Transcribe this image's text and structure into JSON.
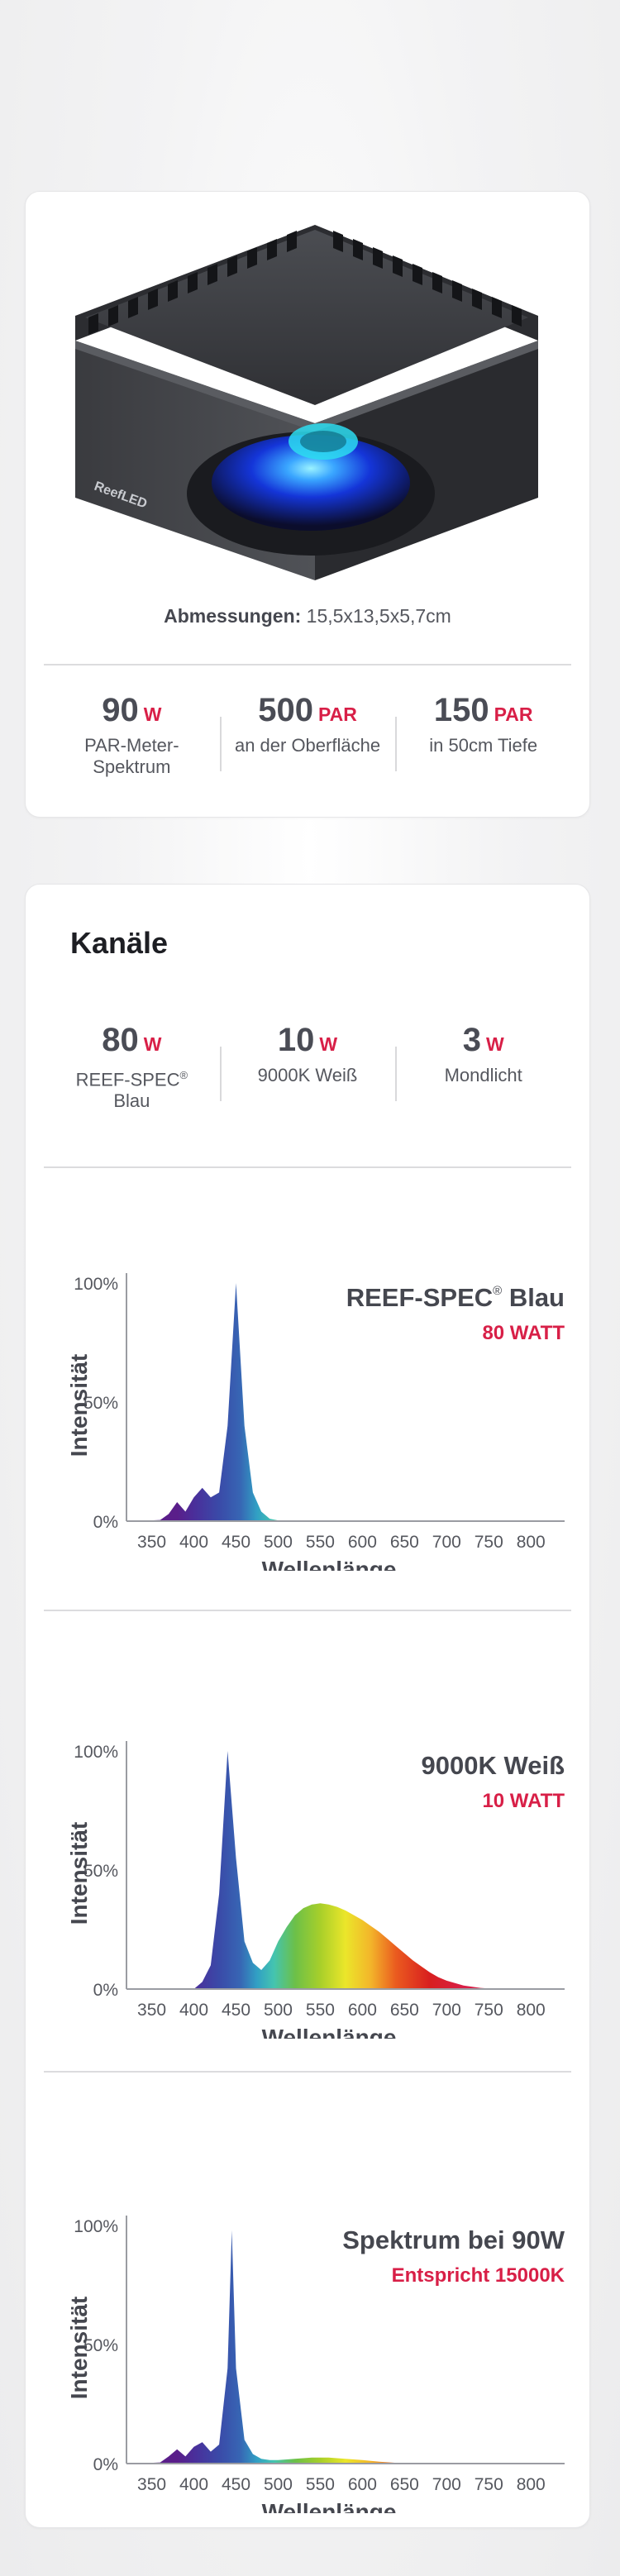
{
  "product": {
    "dims_label": "Abmessungen:",
    "dims_value": "15,5x13,5x5,7cm",
    "logo_text": "ReefLED",
    "stats": [
      {
        "value": "90",
        "unit": "W",
        "label": "PAR-Meter-Spektrum"
      },
      {
        "value": "500",
        "unit": "PAR",
        "label": "an der Oberfläche"
      },
      {
        "value": "150",
        "unit": "PAR",
        "label": "in 50cm Tiefe"
      }
    ]
  },
  "channels": {
    "title": "Kanäle",
    "stats": [
      {
        "value": "80",
        "unit": "W",
        "label": "REEF-SPEC",
        "label_sup": "®",
        "label_2": "Blau"
      },
      {
        "value": "10",
        "unit": "W",
        "label": "9000K Weiß"
      },
      {
        "value": "3",
        "unit": "W",
        "label": "Mondlicht"
      }
    ]
  },
  "colors": {
    "accent": "#d81f47",
    "text_dark": "#45474f"
  },
  "chart_data": [
    {
      "type": "area",
      "title": "REEF-SPEC",
      "title_sup": "®",
      "title_2": "Blau",
      "subtitle": "80 WATT",
      "xlabel": "Wellenlänge",
      "ylabel": "Intensität",
      "xlim": [
        320,
        840
      ],
      "ylim": [
        0,
        100
      ],
      "xticks": [
        "350",
        "400",
        "450",
        "500",
        "550",
        "600",
        "650",
        "700",
        "750",
        "800"
      ],
      "yticks": [
        "0%",
        "50%",
        "100%"
      ],
      "grid": false,
      "x": [
        330,
        360,
        370,
        380,
        390,
        400,
        410,
        420,
        430,
        440,
        450,
        460,
        470,
        480,
        490,
        500,
        510
      ],
      "values": [
        0,
        0.5,
        3,
        8,
        4,
        10,
        14,
        10,
        12,
        40,
        100,
        40,
        12,
        4,
        1,
        0.3,
        0
      ]
    },
    {
      "type": "area",
      "title": "9000K Weiß",
      "subtitle": "10 WATT",
      "xlabel": "Wellenlänge",
      "ylabel": "Intensität",
      "xlim": [
        320,
        840
      ],
      "ylim": [
        0,
        100
      ],
      "xticks": [
        "350",
        "400",
        "450",
        "500",
        "550",
        "600",
        "650",
        "700",
        "750",
        "800"
      ],
      "yticks": [
        "0%",
        "50%",
        "100%"
      ],
      "grid": false,
      "x": [
        400,
        410,
        420,
        430,
        440,
        450,
        460,
        470,
        480,
        490,
        500,
        510,
        520,
        530,
        540,
        550,
        560,
        570,
        580,
        590,
        600,
        610,
        620,
        630,
        640,
        650,
        660,
        670,
        680,
        690,
        700,
        720,
        740,
        760
      ],
      "values": [
        0,
        3,
        10,
        40,
        100,
        55,
        20,
        11,
        8,
        12,
        20,
        26,
        31,
        34,
        35.5,
        36,
        35.5,
        34.5,
        33,
        31,
        29,
        26.5,
        24,
        21,
        18,
        15,
        12,
        9.5,
        7,
        5,
        3.5,
        1.5,
        0.5,
        0
      ]
    },
    {
      "type": "area",
      "title": "Spektrum bei 90W",
      "subtitle": "Entspricht 15000K",
      "xlabel": "Wellenlänge",
      "ylabel": "Intensität",
      "xlim": [
        320,
        840
      ],
      "ylim": [
        0,
        100
      ],
      "xticks": [
        "350",
        "400",
        "450",
        "500",
        "550",
        "600",
        "650",
        "700",
        "750",
        "800"
      ],
      "yticks": [
        "0%",
        "50%",
        "100%"
      ],
      "grid": false,
      "x": [
        330,
        360,
        370,
        380,
        390,
        400,
        410,
        420,
        430,
        440,
        445,
        450,
        460,
        470,
        480,
        490,
        500,
        520,
        540,
        560,
        580,
        600,
        620,
        640,
        660
      ],
      "values": [
        0,
        0.5,
        3,
        6,
        3,
        7,
        9,
        5,
        8,
        40,
        98,
        40,
        10,
        4,
        2,
        1.5,
        1.5,
        2,
        2.5,
        2.5,
        2,
        1.5,
        0.8,
        0.3,
        0
      ]
    }
  ]
}
